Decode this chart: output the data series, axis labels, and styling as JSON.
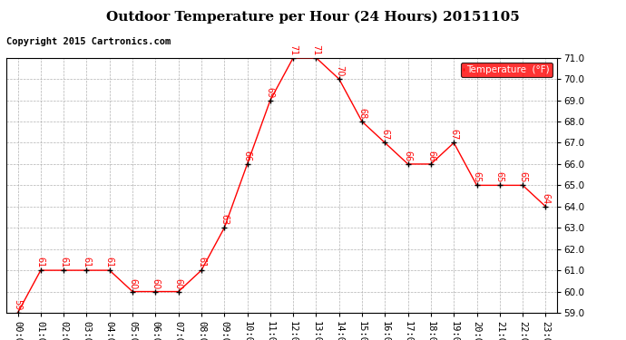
{
  "title": "Outdoor Temperature per Hour (24 Hours) 20151105",
  "copyright_text": "Copyright 2015 Cartronics.com",
  "legend_label": "Temperature  (°F)",
  "hours": [
    "00:00",
    "01:00",
    "02:00",
    "03:00",
    "04:00",
    "05:00",
    "06:00",
    "07:00",
    "08:00",
    "09:00",
    "10:00",
    "11:00",
    "12:00",
    "13:00",
    "14:00",
    "15:00",
    "16:00",
    "17:00",
    "18:00",
    "19:00",
    "20:00",
    "21:00",
    "22:00",
    "23:00"
  ],
  "temperatures": [
    59,
    61,
    61,
    61,
    61,
    60,
    60,
    60,
    61,
    63,
    66,
    69,
    71,
    71,
    70,
    68,
    67,
    66,
    66,
    67,
    65,
    65,
    65,
    64
  ],
  "ylim_min": 59.0,
  "ylim_max": 71.0,
  "yticks": [
    59.0,
    60.0,
    61.0,
    62.0,
    63.0,
    64.0,
    65.0,
    66.0,
    67.0,
    68.0,
    69.0,
    70.0,
    71.0
  ],
  "line_color": "red",
  "marker_color": "black",
  "label_color": "red",
  "bg_color": "white",
  "grid_color": "#aaaaaa",
  "legend_bg": "red",
  "legend_text_color": "white",
  "title_fontsize": 11,
  "label_fontsize": 7,
  "copyright_fontsize": 7.5,
  "tick_fontsize": 7.5
}
